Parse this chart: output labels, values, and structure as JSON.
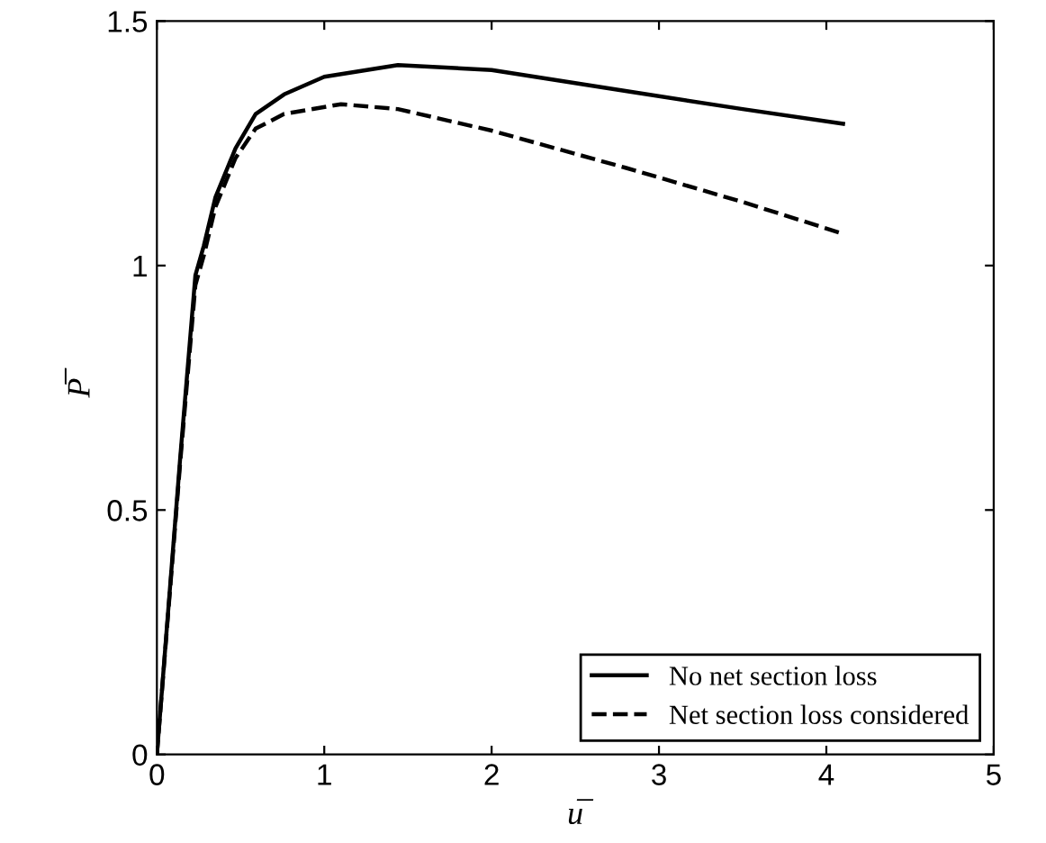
{
  "chart_data": {
    "type": "line",
    "xlabel": "u̅",
    "ylabel": "P̅",
    "xlim": [
      0,
      5
    ],
    "ylim": [
      0,
      1.5
    ],
    "xticks": [
      0,
      1,
      2,
      3,
      4,
      5
    ],
    "yticks": [
      0,
      {
        "value": 0.5,
        "label": "0.5"
      },
      1,
      {
        "value": 1.5,
        "label": "1.5"
      }
    ],
    "grid": false,
    "legend": "bottom right",
    "marker": "none",
    "series": [
      {
        "name": "No net section loss",
        "color": "#000000",
        "line_style": "solid",
        "x": [
          0,
          0.14,
          0.23,
          0.28,
          0.35,
          0.47,
          0.59,
          0.76,
          1,
          1.44,
          2,
          2.8,
          3.5,
          4.1
        ],
        "values": [
          0,
          0.61,
          0.98,
          1.04,
          1.14,
          1.24,
          1.31,
          1.35,
          1.386,
          1.41,
          1.4,
          1.357,
          1.32,
          1.29
        ]
      },
      {
        "name": "Net section loss considered",
        "color": "#000000",
        "line_style": "dashed",
        "x": [
          0,
          0.14,
          0.23,
          0.28,
          0.35,
          0.47,
          0.59,
          0.76,
          1.1,
          1.44,
          2,
          2.8,
          3.5,
          4.1
        ],
        "values": [
          0,
          0.6,
          0.96,
          1.02,
          1.12,
          1.22,
          1.28,
          1.31,
          1.33,
          1.32,
          1.276,
          1.2,
          1.13,
          1.065
        ]
      }
    ]
  }
}
